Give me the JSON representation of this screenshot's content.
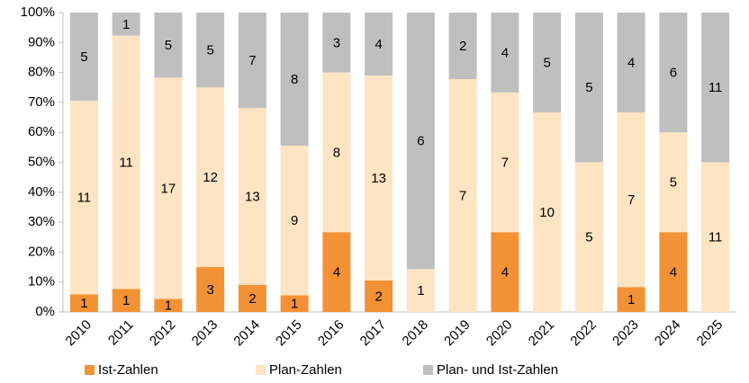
{
  "chart_data": {
    "type": "bar",
    "stacking": "percent",
    "categories": [
      "2010",
      "2011",
      "2012",
      "2013",
      "2014",
      "2015",
      "2016",
      "2017",
      "2018",
      "2019",
      "2020",
      "2021",
      "2022",
      "2023",
      "2024",
      "2025"
    ],
    "series": [
      {
        "name": "Ist-Zahlen",
        "color": "#f39235",
        "values": [
          1,
          1,
          1,
          3,
          2,
          1,
          4,
          2,
          null,
          null,
          4,
          null,
          null,
          1,
          4,
          null
        ]
      },
      {
        "name": "Plan-Zahlen",
        "color": "#fde4c2",
        "values": [
          11,
          11,
          17,
          12,
          13,
          9,
          8,
          13,
          1,
          7,
          7,
          10,
          5,
          7,
          5,
          11
        ]
      },
      {
        "name": "Plan- und Ist-Zahlen",
        "color": "#bfbfbf",
        "values": [
          5,
          1,
          5,
          5,
          7,
          8,
          3,
          4,
          6,
          2,
          4,
          5,
          5,
          4,
          6,
          11
        ]
      }
    ],
    "ylim": [
      0,
      100
    ],
    "yticks": [
      {
        "value": 0,
        "label": "0%"
      },
      {
        "value": 10,
        "label": "10%"
      },
      {
        "value": 20,
        "label": "20%"
      },
      {
        "value": 30,
        "label": "30%"
      },
      {
        "value": 40,
        "label": "40%"
      },
      {
        "value": 50,
        "label": "50%"
      },
      {
        "value": 60,
        "label": "60%"
      },
      {
        "value": 70,
        "label": "70%"
      },
      {
        "value": 80,
        "label": "80%"
      },
      {
        "value": 90,
        "label": "90%"
      },
      {
        "value": 100,
        "label": "100%"
      }
    ],
    "legend": "bottom"
  }
}
